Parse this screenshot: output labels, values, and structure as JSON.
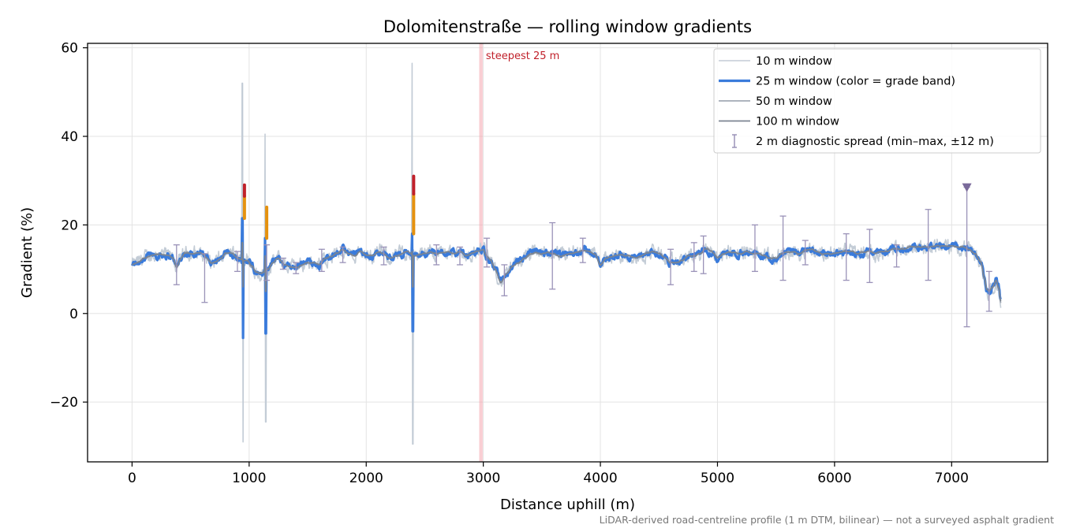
{
  "chart_data": {
    "type": "line",
    "title": "Dolomitenstraße — rolling window gradients",
    "xlabel": "Distance uphill (m)",
    "ylabel": "Gradient (%)",
    "xlim": [
      -380,
      7820
    ],
    "ylim": [
      -33.5,
      61
    ],
    "x_ticks": [
      0,
      1000,
      2000,
      3000,
      4000,
      5000,
      6000,
      7000
    ],
    "y_ticks": [
      -20,
      0,
      20,
      40,
      60
    ],
    "x_tick_labels": [
      "0",
      "1000",
      "2000",
      "3000",
      "4000",
      "5000",
      "6000",
      "7000"
    ],
    "y_tick_labels": [
      "−20",
      "0",
      "20",
      "40",
      "60"
    ],
    "grid": true,
    "legend_position": "top-right",
    "footnote": "LiDAR-derived road-centreline profile (1 m DTM, bilinear) — not a surveyed asphalt gradient",
    "steepest_marker": {
      "label": "steepest 25 m",
      "x_start": 2965,
      "x_end": 2995,
      "color": "#f4a6ae"
    },
    "peak_marker": {
      "x": 7130,
      "y": 28.5,
      "color": "#7a6a9a"
    },
    "anchors": [
      [
        0,
        11
      ],
      [
        50,
        11.5
      ],
      [
        100,
        12.5
      ],
      [
        150,
        13
      ],
      [
        200,
        13.2
      ],
      [
        250,
        13.3
      ],
      [
        300,
        13.1
      ],
      [
        350,
        12.5
      ],
      [
        380,
        10.5
      ],
      [
        420,
        12.5
      ],
      [
        450,
        13.5
      ],
      [
        500,
        13.6
      ],
      [
        560,
        13.7
      ],
      [
        600,
        13.5
      ],
      [
        640,
        12.5
      ],
      [
        680,
        11.5
      ],
      [
        720,
        11.8
      ],
      [
        760,
        12.5
      ],
      [
        800,
        13.5
      ],
      [
        850,
        13.5
      ],
      [
        900,
        12.5
      ],
      [
        930,
        12
      ],
      [
        990,
        12
      ],
      [
        1020,
        11
      ],
      [
        1060,
        9.5
      ],
      [
        1100,
        9
      ],
      [
        1160,
        10
      ],
      [
        1200,
        11.5
      ],
      [
        1250,
        12.5
      ],
      [
        1300,
        11
      ],
      [
        1350,
        10.5
      ],
      [
        1400,
        10.5
      ],
      [
        1450,
        11
      ],
      [
        1500,
        11.5
      ],
      [
        1550,
        11.5
      ],
      [
        1600,
        11
      ],
      [
        1650,
        12.5
      ],
      [
        1700,
        13
      ],
      [
        1750,
        13.5
      ],
      [
        1800,
        14.5
      ],
      [
        1850,
        13.5
      ],
      [
        1900,
        13
      ],
      [
        1950,
        14
      ],
      [
        2000,
        13.2
      ],
      [
        2050,
        13
      ],
      [
        2100,
        14
      ],
      [
        2150,
        13.5
      ],
      [
        2200,
        12.5
      ],
      [
        2250,
        13
      ],
      [
        2300,
        13.5
      ],
      [
        2350,
        14
      ],
      [
        2420,
        13
      ],
      [
        2450,
        13.2
      ],
      [
        2500,
        13.5
      ],
      [
        2550,
        14
      ],
      [
        2600,
        13.5
      ],
      [
        2650,
        13.8
      ],
      [
        2700,
        14
      ],
      [
        2750,
        13.5
      ],
      [
        2800,
        14
      ],
      [
        2850,
        13
      ],
      [
        2900,
        13.5
      ],
      [
        2960,
        14
      ],
      [
        3000,
        14.5
      ],
      [
        3030,
        13
      ],
      [
        3060,
        12
      ],
      [
        3100,
        10
      ],
      [
        3150,
        7
      ],
      [
        3200,
        9
      ],
      [
        3250,
        10.5
      ],
      [
        3300,
        11.5
      ],
      [
        3350,
        12.5
      ],
      [
        3400,
        13.5
      ],
      [
        3450,
        13.8
      ],
      [
        3500,
        13.5
      ],
      [
        3550,
        13.7
      ],
      [
        3600,
        13.5
      ],
      [
        3650,
        13
      ],
      [
        3700,
        13.2
      ],
      [
        3750,
        13.5
      ],
      [
        3800,
        14
      ],
      [
        3850,
        14.2
      ],
      [
        3900,
        14
      ],
      [
        3950,
        13.5
      ],
      [
        4000,
        11
      ],
      [
        4050,
        12.5
      ],
      [
        4100,
        13
      ],
      [
        4150,
        13.2
      ],
      [
        4200,
        13
      ],
      [
        4250,
        13
      ],
      [
        4300,
        12.5
      ],
      [
        4350,
        13
      ],
      [
        4400,
        13.5
      ],
      [
        4450,
        14
      ],
      [
        4500,
        13.5
      ],
      [
        4550,
        12.5
      ],
      [
        4600,
        11.5
      ],
      [
        4650,
        11.5
      ],
      [
        4700,
        12
      ],
      [
        4750,
        13
      ],
      [
        4800,
        13
      ],
      [
        4850,
        13.5
      ],
      [
        4900,
        14.5
      ],
      [
        4950,
        14
      ],
      [
        5000,
        12.5
      ],
      [
        5050,
        13.5
      ],
      [
        5100,
        14
      ],
      [
        5150,
        13.8
      ],
      [
        5200,
        13.5
      ],
      [
        5250,
        14
      ],
      [
        5300,
        13.5
      ],
      [
        5350,
        13.5
      ],
      [
        5400,
        13
      ],
      [
        5450,
        12.5
      ],
      [
        5500,
        12.5
      ],
      [
        5550,
        13.5
      ],
      [
        5600,
        13.8
      ],
      [
        5650,
        14
      ],
      [
        5700,
        13.5
      ],
      [
        5750,
        14.5
      ],
      [
        5800,
        14.5
      ],
      [
        5850,
        14
      ],
      [
        5900,
        13.5
      ],
      [
        5950,
        13.5
      ],
      [
        6000,
        13.5
      ],
      [
        6050,
        13.8
      ],
      [
        6100,
        14
      ],
      [
        6150,
        14
      ],
      [
        6200,
        13.5
      ],
      [
        6250,
        13.8
      ],
      [
        6300,
        14
      ],
      [
        6350,
        13.5
      ],
      [
        6400,
        14
      ],
      [
        6450,
        14
      ],
      [
        6500,
        14.5
      ],
      [
        6550,
        14.5
      ],
      [
        6600,
        14.5
      ],
      [
        6650,
        15
      ],
      [
        6700,
        15
      ],
      [
        6750,
        15
      ],
      [
        6800,
        15
      ],
      [
        6850,
        15.2
      ],
      [
        6900,
        15.3
      ],
      [
        6950,
        15.2
      ],
      [
        7000,
        15.2
      ],
      [
        7050,
        15
      ],
      [
        7100,
        15
      ],
      [
        7150,
        14.5
      ],
      [
        7200,
        13.5
      ],
      [
        7250,
        11.5
      ],
      [
        7280,
        8
      ],
      [
        7300,
        5.5
      ],
      [
        7320,
        5
      ],
      [
        7350,
        6
      ],
      [
        7380,
        7.5
      ],
      [
        7400,
        6
      ],
      [
        7420,
        3
      ]
    ],
    "spikes": [
      {
        "x": 945,
        "w": 13,
        "max10": 52,
        "min10": -29,
        "max25": 21.5,
        "min25": -5.5,
        "max100": 16,
        "min100": 6
      },
      {
        "x": 1140,
        "w": 12,
        "max10": 40.5,
        "min10": -24.5,
        "max25": 17,
        "min25": -4.5,
        "max100": 13,
        "min100": 5
      },
      {
        "x": 2395,
        "w": 13,
        "max10": 56.5,
        "min10": -29.5,
        "max25": 18,
        "min25": -4,
        "max100": 14,
        "min100": 6
      }
    ],
    "colored_bands": [
      {
        "x": 960,
        "from": 21.5,
        "to": 26.5,
        "color": "#e5920f"
      },
      {
        "x": 960,
        "from": 26.5,
        "to": 29,
        "color": "#c0202a"
      },
      {
        "x": 1150,
        "from": 17,
        "to": 24,
        "color": "#e5920f"
      },
      {
        "x": 2405,
        "from": 18,
        "to": 27,
        "color": "#e5920f"
      },
      {
        "x": 2405,
        "from": 27,
        "to": 31,
        "color": "#c0202a"
      }
    ],
    "series": [
      {
        "name": "10 m window",
        "color": "#c3ccd6",
        "width": 1.6
      },
      {
        "name": "25 m window (color = grade band)",
        "color": "#3a7bdb",
        "width": 3.2
      },
      {
        "name": "50 m window",
        "color": "#a2aab5",
        "width": 1.8
      },
      {
        "name": "100 m window",
        "color": "#7b8491",
        "width": 1.8
      },
      {
        "name": "2 m diagnostic spread (min–max, ±12 m)",
        "color": "#9a92b8",
        "width": 1.3,
        "bars": [
          [
            380,
            6.5,
            15.5
          ],
          [
            620,
            2.5,
            13.5
          ],
          [
            900,
            9.5,
            14
          ],
          [
            1150,
            7.5,
            15.5
          ],
          [
            1290,
            10,
            12.5
          ],
          [
            1400,
            9,
            11.5
          ],
          [
            1620,
            9.5,
            14.5
          ],
          [
            1800,
            11.5,
            15
          ],
          [
            2150,
            11,
            15
          ],
          [
            2600,
            11,
            15.5
          ],
          [
            2800,
            11,
            15
          ],
          [
            3030,
            10.5,
            17
          ],
          [
            3180,
            4,
            11
          ],
          [
            3590,
            5.5,
            20.5
          ],
          [
            3850,
            11.5,
            17
          ],
          [
            4600,
            6.5,
            14.5
          ],
          [
            4800,
            9.5,
            16
          ],
          [
            4880,
            9,
            17.5
          ],
          [
            5320,
            9.5,
            20
          ],
          [
            5560,
            7.5,
            22
          ],
          [
            5750,
            11,
            16.5
          ],
          [
            6100,
            7.5,
            18
          ],
          [
            6300,
            7,
            19
          ],
          [
            6530,
            10.5,
            15.5
          ],
          [
            6800,
            7.5,
            23.5
          ],
          [
            7130,
            -3,
            28.5
          ],
          [
            7320,
            0.5,
            9.5
          ]
        ]
      }
    ]
  }
}
